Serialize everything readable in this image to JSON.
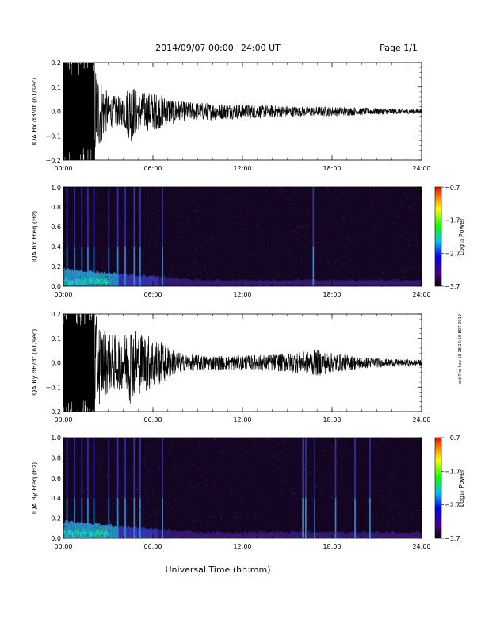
{
  "header": {
    "title": "2014/09/07  00:00−24:00 UT",
    "page": "Page 1/1"
  },
  "side_note": "ext Thu Sep 18 18:22:56 EDT 2019",
  "colors": {
    "background": "#ffffff",
    "spectrogram_bg": "#140523",
    "trace": "#000000"
  },
  "chart_data": [
    {
      "type": "line",
      "ylabel": "IQA Bx dB/dt (nT/sec)",
      "ylim": [
        -0.2,
        0.2
      ],
      "y_ticks": [
        "0.2",
        "0.1",
        "0.0",
        "−0.1",
        "−0.2"
      ],
      "x_ticks": [
        "00:00",
        "06:00",
        "12:00",
        "18:00",
        "24:00"
      ],
      "xlim_hours": [
        0,
        24
      ],
      "series": [
        {
          "values": [
            [
              0.0,
              0.2
            ],
            [
              1.0,
              0.2
            ],
            [
              2.1,
              0.2
            ],
            [
              3.0,
              0.07
            ],
            [
              4.0,
              0.06
            ],
            [
              4.5,
              0.13
            ],
            [
              5.0,
              0.08
            ],
            [
              6.0,
              0.08
            ],
            [
              7.0,
              0.06
            ],
            [
              8.0,
              0.04
            ],
            [
              10.0,
              0.035
            ],
            [
              12.0,
              0.03
            ],
            [
              14.0,
              0.025
            ],
            [
              16.0,
              0.02
            ],
            [
              18.0,
              0.02
            ],
            [
              20.0,
              0.015
            ],
            [
              22.0,
              0.012
            ],
            [
              24.0,
              0.01
            ]
          ]
        }
      ],
      "note": "values give approximate amplitude envelope (nT/sec) of the dB/dt trace vs hours"
    },
    {
      "type": "heatmap",
      "ylabel": "IQA Bx Freq (Hz)",
      "ylim": [
        0.0,
        1.0
      ],
      "y_ticks": [
        "1.0",
        "0.8",
        "0.6",
        "0.4",
        "0.2",
        "0.0"
      ],
      "x_ticks": [
        "00:00",
        "06:00",
        "12:00",
        "18:00",
        "24:00"
      ],
      "colorbar": {
        "label": "Log₁₀ Power",
        "range": [
          -3.7,
          -0.7
        ],
        "ticks": [
          "−0.7",
          "−1.7",
          "−2.7",
          "−3.7"
        ]
      },
      "bursts_hours": [
        0.2,
        0.7,
        1.2,
        1.6,
        2.0,
        3.0,
        3.6,
        4.1,
        4.7,
        5.1,
        6.6,
        16.7
      ]
    },
    {
      "type": "line",
      "ylabel": "IQA By dB/dt (nT/sec)",
      "ylim": [
        -0.2,
        0.2
      ],
      "y_ticks": [
        "0.2",
        "0.1",
        "0.0",
        "−0.1",
        "−0.2"
      ],
      "x_ticks": [
        "00:00",
        "06:00",
        "12:00",
        "18:00",
        "24:00"
      ],
      "xlim_hours": [
        0,
        24
      ],
      "series": [
        {
          "values": [
            [
              0.0,
              0.2
            ],
            [
              1.0,
              0.2
            ],
            [
              2.1,
              0.2
            ],
            [
              3.0,
              0.12
            ],
            [
              4.0,
              0.11
            ],
            [
              4.5,
              0.17
            ],
            [
              5.0,
              0.13
            ],
            [
              6.0,
              0.11
            ],
            [
              7.0,
              0.07
            ],
            [
              8.0,
              0.035
            ],
            [
              10.0,
              0.03
            ],
            [
              12.0,
              0.03
            ],
            [
              14.0,
              0.035
            ],
            [
              16.0,
              0.045
            ],
            [
              17.0,
              0.055
            ],
            [
              18.0,
              0.04
            ],
            [
              20.0,
              0.025
            ],
            [
              22.0,
              0.015
            ],
            [
              24.0,
              0.012
            ]
          ]
        }
      ],
      "note": "values give approximate amplitude envelope (nT/sec) of the dB/dt trace vs hours"
    },
    {
      "type": "heatmap",
      "ylabel": "IQA By Freq (Hz)",
      "ylim": [
        0.0,
        1.0
      ],
      "y_ticks": [
        "1.0",
        "0.8",
        "0.6",
        "0.4",
        "0.2",
        "0.0"
      ],
      "x_ticks": [
        "00:00",
        "06:00",
        "12:00",
        "18:00",
        "24:00"
      ],
      "colorbar": {
        "label": "Log₁₀ Power",
        "range": [
          -3.7,
          -0.7
        ],
        "ticks": [
          "−0.7",
          "−1.7",
          "−2.7",
          "−3.7"
        ]
      },
      "bursts_hours": [
        0.2,
        0.7,
        1.2,
        1.6,
        2.0,
        3.0,
        3.6,
        4.1,
        4.7,
        5.1,
        6.6,
        16.0,
        16.2,
        16.8,
        18.2,
        19.5,
        20.5
      ]
    }
  ],
  "xlabel": "Universal Time (hh:mm)"
}
